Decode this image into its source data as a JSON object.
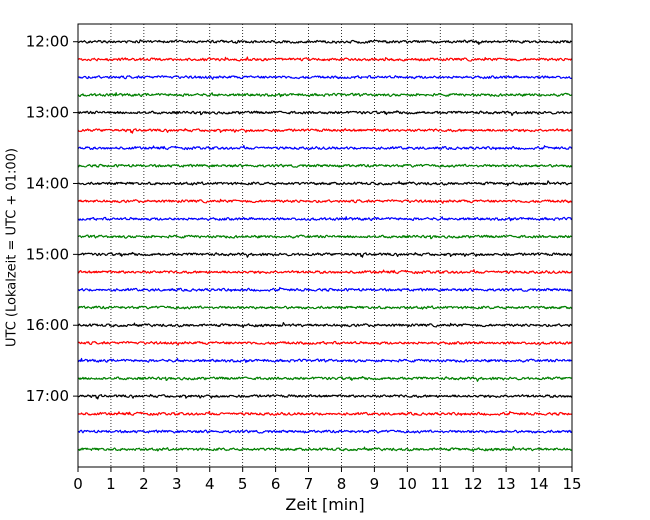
{
  "chart_data": {
    "type": "line",
    "xlabel": "Zeit  [min]",
    "ylabel": "UTC (Lokalzeit = UTC + 01:00)",
    "xlim": [
      0,
      15
    ],
    "x_ticks": [
      0,
      1,
      2,
      3,
      4,
      5,
      6,
      7,
      8,
      9,
      10,
      11,
      12,
      13,
      14,
      15
    ],
    "y_ticks": [
      "12:00",
      "13:00",
      "14:00",
      "15:00",
      "16:00",
      "17:00"
    ],
    "ylim_minutes_from_noon": [
      -15,
      360
    ],
    "trace_interval_minutes": 15,
    "trace_start_times": [
      "12:00",
      "12:15",
      "12:30",
      "12:45",
      "13:00",
      "13:15",
      "13:30",
      "13:45",
      "14:00",
      "14:15",
      "14:30",
      "14:45",
      "15:00",
      "15:15",
      "15:30",
      "15:45",
      "16:00",
      "16:15",
      "16:30",
      "16:45",
      "17:00",
      "17:15",
      "17:30",
      "17:45"
    ],
    "trace_colors": [
      "#000000",
      "#ff0000",
      "#0000ff",
      "#008000"
    ],
    "grid": {
      "x_minor": true,
      "style": "dotted",
      "color": "#000000"
    },
    "legend": "none"
  }
}
